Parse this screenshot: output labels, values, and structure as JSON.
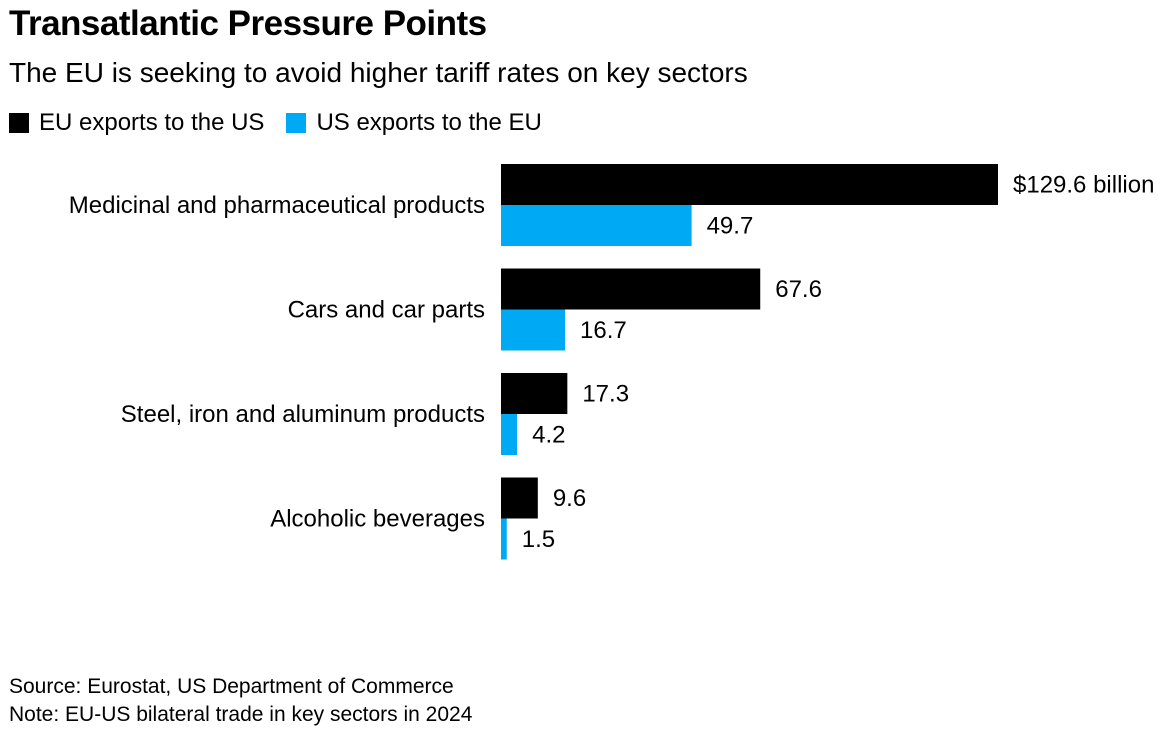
{
  "title": "Transatlantic Pressure Points",
  "subtitle": "The EU is seeking to avoid higher tariff rates on key sectors",
  "legend": [
    {
      "label": "EU exports to the US",
      "color": "#000000"
    },
    {
      "label": "US exports to the EU",
      "color": "#00a9f4"
    }
  ],
  "chart_data": {
    "type": "bar",
    "orientation": "horizontal",
    "title": "Transatlantic Pressure Points",
    "subtitle": "The EU is seeking to avoid higher tariff rates on key sectors",
    "unit": "billion USD",
    "categories": [
      "Medicinal and pharmaceutical products",
      "Cars and car parts",
      "Steel, iron and aluminum products",
      "Alcoholic beverages"
    ],
    "series": [
      {
        "name": "EU exports to the US",
        "color": "#000000",
        "values": [
          129.6,
          67.6,
          17.3,
          9.6
        ],
        "labels": [
          "$129.6 billion",
          "67.6",
          "17.3",
          "9.6"
        ]
      },
      {
        "name": "US exports to the EU",
        "color": "#00a9f4",
        "values": [
          49.7,
          16.7,
          4.2,
          1.5
        ],
        "labels": [
          "49.7",
          "16.7",
          "4.2",
          "1.5"
        ]
      }
    ],
    "xlim": [
      0,
      129.6
    ],
    "grid": false,
    "legend_position": "top-left"
  },
  "footer": {
    "source": "Source: Eurostat, US Department of Commerce",
    "note": "Note: EU-US bilateral trade in key sectors in 2024"
  }
}
